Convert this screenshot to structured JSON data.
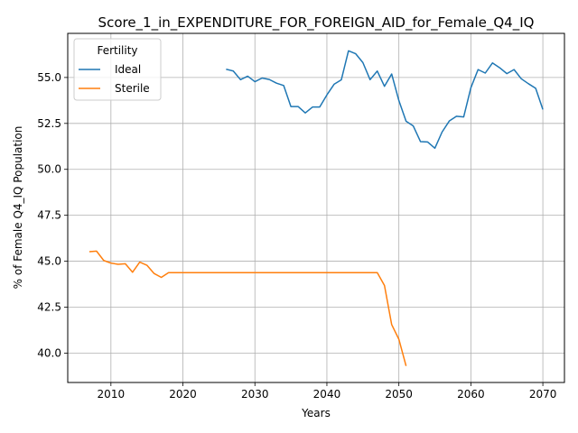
{
  "chart_data": {
    "type": "line",
    "title": "Score_1_in_EXPENDITURE_FOR_FOREIGN_AID_for_Female_Q4_IQ",
    "xlabel": "Years",
    "ylabel": "% of Female Q4_IQ Population",
    "xlim": [
      2004,
      2073
    ],
    "ylim": [
      38.4,
      57.4
    ],
    "xticks": [
      2010,
      2020,
      2030,
      2040,
      2050,
      2060,
      2070
    ],
    "yticks": [
      40.0,
      42.5,
      45.0,
      47.5,
      50.0,
      52.5,
      55.0
    ],
    "ytick_labels": [
      "40.0",
      "42.5",
      "45.0",
      "47.5",
      "50.0",
      "52.5",
      "55.0"
    ],
    "grid": true,
    "legend": {
      "title": "Fertility",
      "placement": "top-left"
    },
    "series": [
      {
        "name": "Ideal",
        "color": "#1f77b4",
        "x": [
          2026,
          2027,
          2028,
          2029,
          2030,
          2031,
          2032,
          2033,
          2034,
          2035,
          2036,
          2037,
          2038,
          2039,
          2040,
          2041,
          2042,
          2043,
          2044,
          2045,
          2046,
          2047,
          2048,
          2049,
          2050,
          2051,
          2052,
          2053,
          2054,
          2055,
          2056,
          2057,
          2058,
          2059,
          2060,
          2061,
          2062,
          2063,
          2064,
          2065,
          2066,
          2067,
          2068,
          2069,
          2070
        ],
        "y": [
          55.45,
          55.35,
          54.88,
          55.07,
          54.77,
          54.97,
          54.89,
          54.69,
          54.56,
          53.42,
          53.42,
          53.07,
          53.39,
          53.39,
          54.05,
          54.63,
          54.87,
          56.45,
          56.29,
          55.81,
          54.88,
          55.35,
          54.52,
          55.19,
          53.74,
          52.62,
          52.36,
          51.51,
          51.49,
          51.15,
          52.03,
          52.63,
          52.89,
          52.85,
          54.44,
          55.43,
          55.24,
          55.79,
          55.53,
          55.21,
          55.43,
          54.93,
          54.66,
          54.41,
          53.26
        ]
      },
      {
        "name": "Sterile",
        "color": "#ff7f0e",
        "x": [
          2007,
          2008,
          2009,
          2010,
          2011,
          2012,
          2013,
          2014,
          2015,
          2016,
          2017,
          2018,
          2019,
          2020,
          2021,
          2022,
          2023,
          2024,
          2025,
          2026,
          2027,
          2028,
          2029,
          2030,
          2031,
          2032,
          2033,
          2034,
          2035,
          2036,
          2037,
          2038,
          2039,
          2040,
          2041,
          2042,
          2043,
          2044,
          2045,
          2046,
          2047,
          2048,
          2049,
          2050,
          2051
        ],
        "y": [
          45.52,
          45.55,
          45.04,
          44.9,
          44.83,
          44.86,
          44.4,
          44.95,
          44.78,
          44.33,
          44.12,
          44.38,
          44.38,
          44.38,
          44.38,
          44.38,
          44.38,
          44.38,
          44.38,
          44.38,
          44.38,
          44.38,
          44.38,
          44.38,
          44.38,
          44.38,
          44.38,
          44.38,
          44.38,
          44.38,
          44.38,
          44.38,
          44.38,
          44.38,
          44.38,
          44.38,
          44.38,
          44.38,
          44.38,
          44.38,
          44.38,
          43.68,
          41.55,
          40.75,
          39.3
        ]
      }
    ]
  }
}
